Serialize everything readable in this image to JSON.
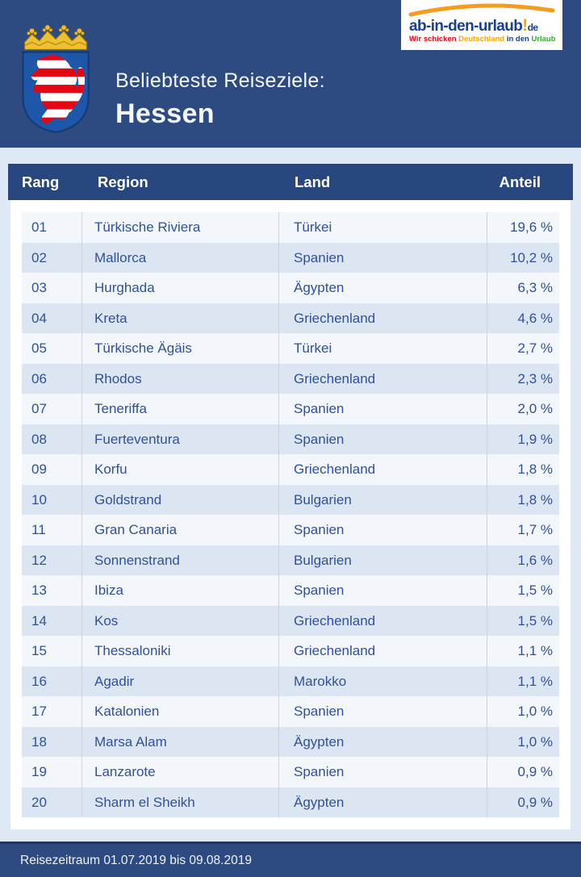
{
  "banner": {
    "subtitle": "Beliebteste Reiseziele:",
    "title": "Hessen",
    "coat_of_arms": "hessen-coat-of-arms"
  },
  "logo": {
    "wordmark": "ab-in-den-urlaub",
    "bang": "!",
    "tld": "de",
    "tagline": [
      {
        "text": "Wir schicken ",
        "color": "#e30613"
      },
      {
        "text": "Deutschland ",
        "color": "#f5a800"
      },
      {
        "text": "in den ",
        "color": "#1b3f8f"
      },
      {
        "text": "Urlaub",
        "color": "#3aaa35"
      }
    ]
  },
  "table": {
    "headers": [
      "Rang",
      "Region",
      "Land",
      "Anteil"
    ],
    "rows": [
      {
        "rank": "01",
        "region": "Türkische Riviera",
        "land": "Türkei",
        "anteil": "19,6 %"
      },
      {
        "rank": "02",
        "region": "Mallorca",
        "land": "Spanien",
        "anteil": "10,2 %"
      },
      {
        "rank": "03",
        "region": "Hurghada",
        "land": "Ägypten",
        "anteil": "6,3 %"
      },
      {
        "rank": "04",
        "region": "Kreta",
        "land": "Griechenland",
        "anteil": "4,6 %"
      },
      {
        "rank": "05",
        "region": "Türkische Ägäis",
        "land": "Türkei",
        "anteil": "2,7 %"
      },
      {
        "rank": "06",
        "region": "Rhodos",
        "land": "Griechenland",
        "anteil": "2,3 %"
      },
      {
        "rank": "07",
        "region": "Teneriffa",
        "land": "Spanien",
        "anteil": "2,0 %"
      },
      {
        "rank": "08",
        "region": "Fuerteventura",
        "land": "Spanien",
        "anteil": "1,9 %"
      },
      {
        "rank": "09",
        "region": "Korfu",
        "land": "Griechenland",
        "anteil": "1,8 %"
      },
      {
        "rank": "10",
        "region": "Goldstrand",
        "land": "Bulgarien",
        "anteil": "1,8 %"
      },
      {
        "rank": "11",
        "region": "Gran Canaria",
        "land": "Spanien",
        "anteil": "1,7 %"
      },
      {
        "rank": "12",
        "region": "Sonnenstrand",
        "land": "Bulgarien",
        "anteil": "1,6 %"
      },
      {
        "rank": "13",
        "region": "Ibiza",
        "land": "Spanien",
        "anteil": "1,5 %"
      },
      {
        "rank": "14",
        "region": "Kos",
        "land": "Griechenland",
        "anteil": "1,5 %"
      },
      {
        "rank": "15",
        "region": "Thessaloniki",
        "land": "Griechenland",
        "anteil": "1,1 %"
      },
      {
        "rank": "16",
        "region": "Agadir",
        "land": "Marokko",
        "anteil": "1,1 %"
      },
      {
        "rank": "17",
        "region": "Katalonien",
        "land": "Spanien",
        "anteil": "1,0 %"
      },
      {
        "rank": "18",
        "region": "Marsa Alam",
        "land": "Ägypten",
        "anteil": "1,0 %"
      },
      {
        "rank": "19",
        "region": "Lanzarote",
        "land": "Spanien",
        "anteil": "0,9 %"
      },
      {
        "rank": "20",
        "region": "Sharm el Sheikh",
        "land": "Ägypten",
        "anteil": "0,9 %"
      }
    ]
  },
  "footer": {
    "text": "Reisezeitraum 01.07.2019 bis 09.08.2019"
  },
  "colors": {
    "banner_bg": "#2e4b81",
    "table_header_bg": "#27477e",
    "page_bg": "#dfe9f5",
    "card_bg": "#ffffff",
    "row_light": "#f3f7fb",
    "row_shade": "#dce6f3",
    "row_text": "#30509b",
    "separator": "#c6d6ea",
    "footer_bg": "#2e4b81",
    "crown_gold": "#f0c12f",
    "shield_blue": "#1e56a8",
    "lion_red": "#e30613"
  },
  "chart_data": {
    "type": "table",
    "title": "Beliebteste Reiseziele: Hessen",
    "columns": [
      "Rang",
      "Region",
      "Land",
      "Anteil"
    ],
    "rows": [
      [
        "01",
        "Türkische Riviera",
        "Türkei",
        "19,6 %"
      ],
      [
        "02",
        "Mallorca",
        "Spanien",
        "10,2 %"
      ],
      [
        "03",
        "Hurghada",
        "Ägypten",
        "6,3 %"
      ],
      [
        "04",
        "Kreta",
        "Griechenland",
        "4,6 %"
      ],
      [
        "05",
        "Türkische Ägäis",
        "Türkei",
        "2,7 %"
      ],
      [
        "06",
        "Rhodos",
        "Griechenland",
        "2,3 %"
      ],
      [
        "07",
        "Teneriffa",
        "Spanien",
        "2,0 %"
      ],
      [
        "08",
        "Fuerteventura",
        "Spanien",
        "1,9 %"
      ],
      [
        "09",
        "Korfu",
        "Griechenland",
        "1,8 %"
      ],
      [
        "10",
        "Goldstrand",
        "Bulgarien",
        "1,8 %"
      ],
      [
        "11",
        "Gran Canaria",
        "Spanien",
        "1,7 %"
      ],
      [
        "12",
        "Sonnenstrand",
        "Bulgarien",
        "1,6 %"
      ],
      [
        "13",
        "Ibiza",
        "Spanien",
        "1,5 %"
      ],
      [
        "14",
        "Kos",
        "Griechenland",
        "1,5 %"
      ],
      [
        "15",
        "Thessaloniki",
        "Griechenland",
        "1,1 %"
      ],
      [
        "16",
        "Agadir",
        "Marokko",
        "1,1 %"
      ],
      [
        "17",
        "Katalonien",
        "Spanien",
        "1,0 %"
      ],
      [
        "18",
        "Marsa Alam",
        "Ägypten",
        "1,0 %"
      ],
      [
        "19",
        "Lanzarote",
        "Spanien",
        "0,9 %"
      ],
      [
        "20",
        "Sharm el Sheikh",
        "Ägypten",
        "0,9 %"
      ]
    ],
    "values_percent": [
      19.6,
      10.2,
      6.3,
      4.6,
      2.7,
      2.3,
      2.0,
      1.9,
      1.8,
      1.8,
      1.7,
      1.6,
      1.5,
      1.5,
      1.1,
      1.1,
      1.0,
      1.0,
      0.9,
      0.9
    ],
    "period": "01.07.2019 bis 09.08.2019"
  }
}
